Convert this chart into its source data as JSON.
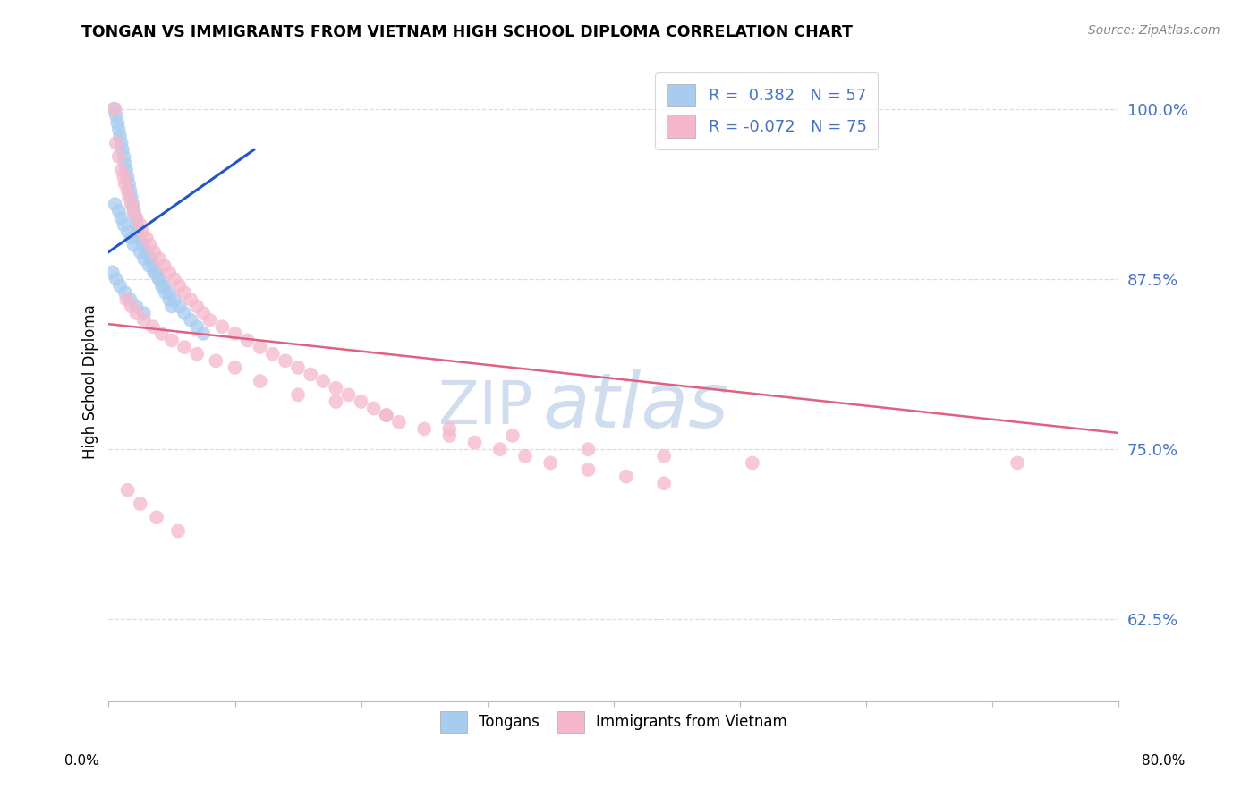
{
  "title": "TONGAN VS IMMIGRANTS FROM VIETNAM HIGH SCHOOL DIPLOMA CORRELATION CHART",
  "source": "Source: ZipAtlas.com",
  "ylabel": "High School Diploma",
  "ytick_labels": [
    "100.0%",
    "87.5%",
    "75.0%",
    "62.5%"
  ],
  "ytick_values": [
    1.0,
    0.875,
    0.75,
    0.625
  ],
  "xmin": 0.0,
  "xmax": 0.8,
  "ymin": 0.565,
  "ymax": 1.035,
  "color_tongan": "#A8CCF0",
  "color_vietnam": "#F5B8CB",
  "color_trendline_tongan": "#2255CC",
  "color_trendline_vietnam": "#E06080",
  "color_grid": "#DCDCDC",
  "color_axis_right": "#4472C4",
  "tongan_x": [
    0.004,
    0.006,
    0.007,
    0.008,
    0.009,
    0.01,
    0.011,
    0.012,
    0.013,
    0.014,
    0.015,
    0.016,
    0.017,
    0.018,
    0.019,
    0.02,
    0.021,
    0.022,
    0.023,
    0.025,
    0.027,
    0.03,
    0.033,
    0.035,
    0.038,
    0.04,
    0.042,
    0.045,
    0.048,
    0.05,
    0.005,
    0.008,
    0.01,
    0.012,
    0.015,
    0.018,
    0.02,
    0.025,
    0.028,
    0.032,
    0.036,
    0.04,
    0.044,
    0.048,
    0.052,
    0.056,
    0.06,
    0.065,
    0.07,
    0.075,
    0.003,
    0.006,
    0.009,
    0.013,
    0.017,
    0.022,
    0.028
  ],
  "tongan_y": [
    1.0,
    0.995,
    0.99,
    0.985,
    0.98,
    0.975,
    0.97,
    0.965,
    0.96,
    0.955,
    0.95,
    0.945,
    0.94,
    0.935,
    0.93,
    0.925,
    0.92,
    0.915,
    0.91,
    0.905,
    0.9,
    0.895,
    0.89,
    0.885,
    0.88,
    0.875,
    0.87,
    0.865,
    0.86,
    0.855,
    0.93,
    0.925,
    0.92,
    0.915,
    0.91,
    0.905,
    0.9,
    0.895,
    0.89,
    0.885,
    0.88,
    0.875,
    0.87,
    0.865,
    0.86,
    0.855,
    0.85,
    0.845,
    0.84,
    0.835,
    0.88,
    0.875,
    0.87,
    0.865,
    0.86,
    0.855,
    0.85
  ],
  "vietnam_x": [
    0.005,
    0.006,
    0.008,
    0.01,
    0.012,
    0.013,
    0.015,
    0.016,
    0.018,
    0.02,
    0.022,
    0.025,
    0.027,
    0.03,
    0.033,
    0.036,
    0.04,
    0.044,
    0.048,
    0.052,
    0.056,
    0.06,
    0.065,
    0.07,
    0.075,
    0.08,
    0.09,
    0.1,
    0.11,
    0.12,
    0.13,
    0.14,
    0.15,
    0.16,
    0.17,
    0.18,
    0.19,
    0.2,
    0.21,
    0.22,
    0.23,
    0.25,
    0.27,
    0.29,
    0.31,
    0.33,
    0.35,
    0.38,
    0.41,
    0.44,
    0.014,
    0.018,
    0.022,
    0.028,
    0.035,
    0.042,
    0.05,
    0.06,
    0.07,
    0.085,
    0.1,
    0.12,
    0.15,
    0.18,
    0.22,
    0.27,
    0.32,
    0.38,
    0.44,
    0.51,
    0.015,
    0.025,
    0.038,
    0.055,
    0.72
  ],
  "vietnam_y": [
    1.0,
    0.975,
    0.965,
    0.955,
    0.95,
    0.945,
    0.94,
    0.935,
    0.93,
    0.925,
    0.92,
    0.915,
    0.91,
    0.905,
    0.9,
    0.895,
    0.89,
    0.885,
    0.88,
    0.875,
    0.87,
    0.865,
    0.86,
    0.855,
    0.85,
    0.845,
    0.84,
    0.835,
    0.83,
    0.825,
    0.82,
    0.815,
    0.81,
    0.805,
    0.8,
    0.795,
    0.79,
    0.785,
    0.78,
    0.775,
    0.77,
    0.765,
    0.76,
    0.755,
    0.75,
    0.745,
    0.74,
    0.735,
    0.73,
    0.725,
    0.86,
    0.855,
    0.85,
    0.845,
    0.84,
    0.835,
    0.83,
    0.825,
    0.82,
    0.815,
    0.81,
    0.8,
    0.79,
    0.785,
    0.775,
    0.765,
    0.76,
    0.75,
    0.745,
    0.74,
    0.72,
    0.71,
    0.7,
    0.69,
    0.74
  ],
  "vietnam_trendline_x": [
    0.0,
    0.8
  ],
  "vietnam_trendline_y": [
    0.842,
    0.762
  ],
  "tongan_trendline_x": [
    0.0,
    0.115
  ],
  "tongan_trendline_y": [
    0.895,
    0.97
  ]
}
